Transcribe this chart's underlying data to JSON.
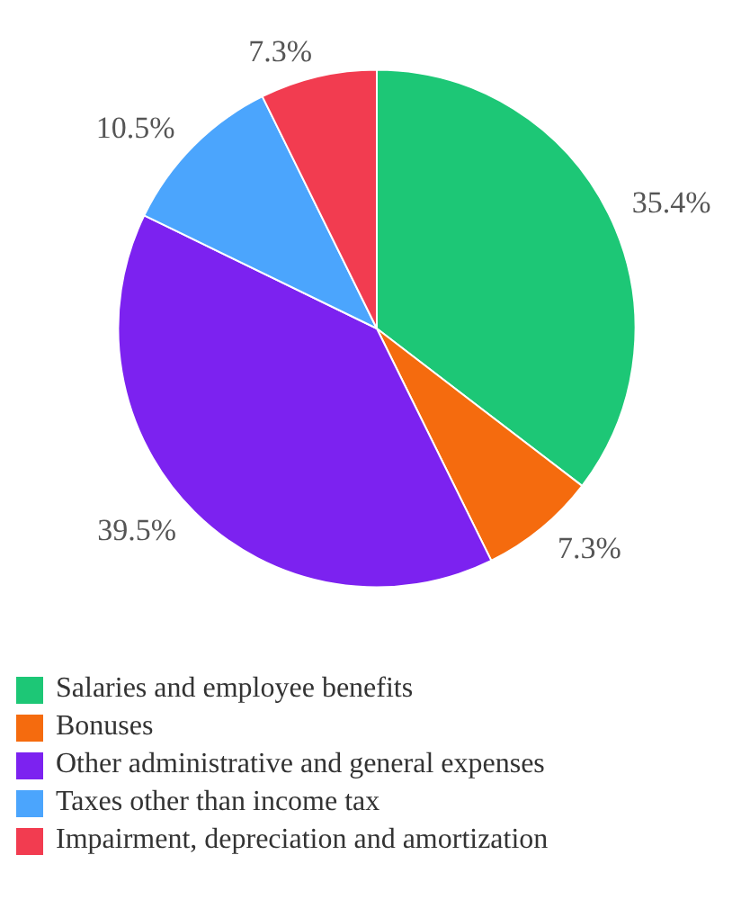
{
  "chart_data": {
    "type": "pie",
    "categories": [
      "Salaries and employee benefits",
      "Bonuses",
      "Other administrative and general expenses",
      "Taxes other than income tax",
      "Impairment, depreciation and amortization"
    ],
    "values": [
      35.4,
      7.3,
      39.5,
      10.5,
      7.3
    ],
    "value_labels": [
      "35.4%",
      "7.3%",
      "39.5%",
      "10.5%",
      "7.3%"
    ],
    "colors": [
      "#1dc776",
      "#f56b0e",
      "#7c22f0",
      "#4ba5fd",
      "#f23c50"
    ],
    "legend": "bottom left"
  }
}
